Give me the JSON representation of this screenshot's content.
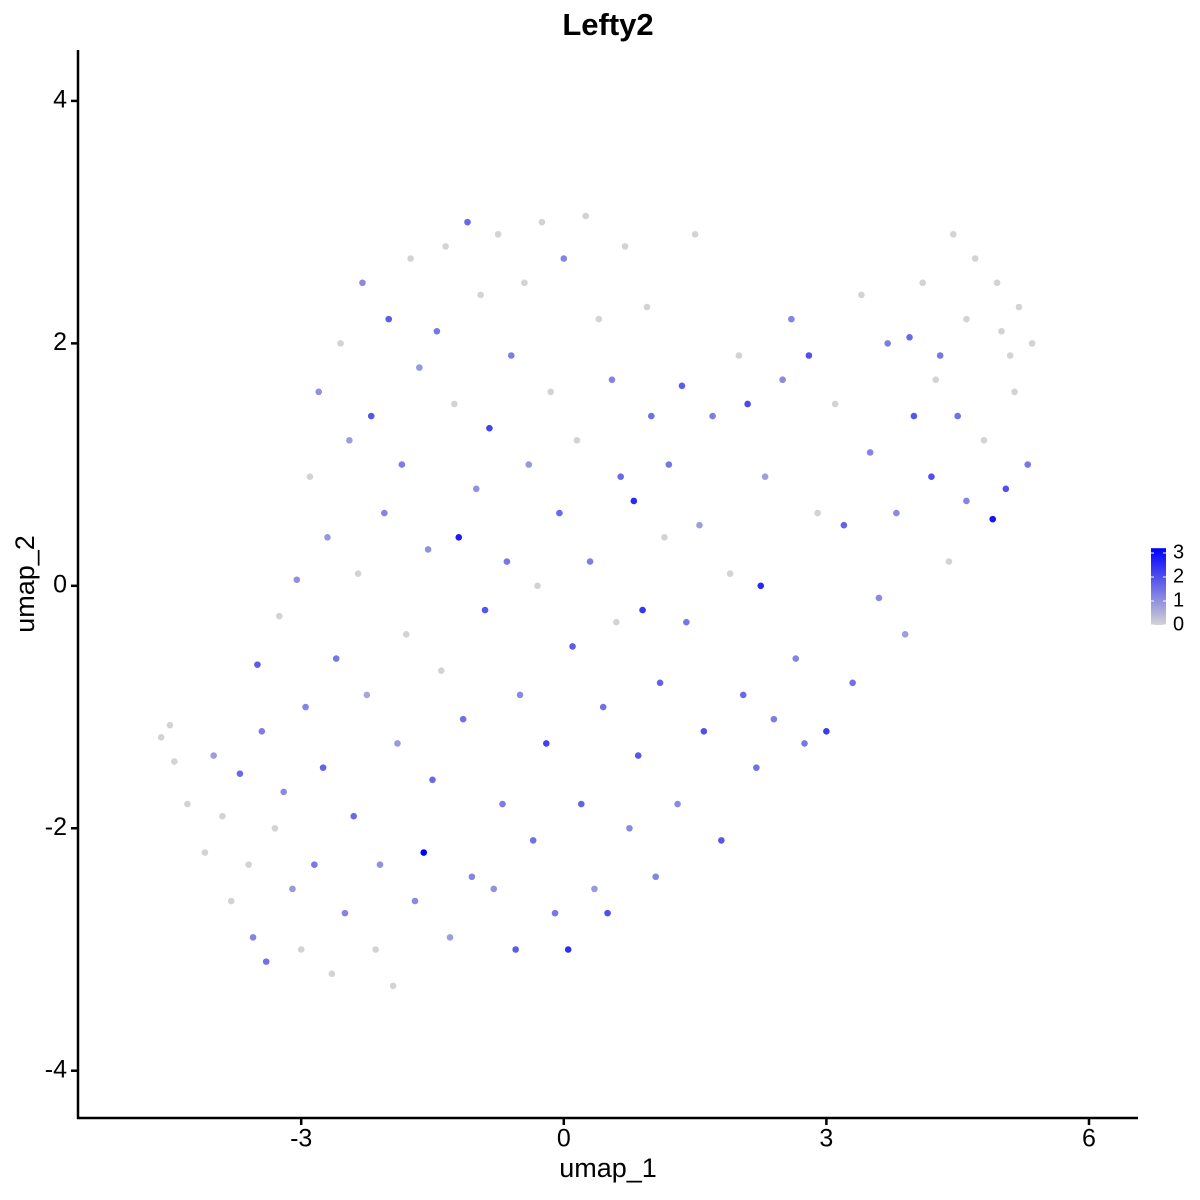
{
  "chart_data": {
    "type": "scatter",
    "title": "Lefty2",
    "x_label": "umap_1",
    "y_label": "umap_2",
    "xlim": [
      -5.55,
      6.56
    ],
    "ylim": [
      -4.39,
      4.42
    ],
    "xticks": [
      -3,
      0,
      3,
      6
    ],
    "yticks": [
      -4,
      -2,
      0,
      2,
      4
    ],
    "color_low": "#d3d3d3",
    "color_high": "#0000ff",
    "clim": [
      0,
      3.2
    ],
    "cticks": [
      0,
      1,
      2,
      3
    ],
    "x": [
      -4.6,
      -4.5,
      -4.45,
      -4.3,
      -4.1,
      -4.0,
      -3.9,
      -3.8,
      -3.7,
      -3.6,
      -3.55,
      -3.5,
      -3.45,
      -3.4,
      -3.3,
      -3.25,
      -3.2,
      -3.1,
      -3.05,
      -3.0,
      -2.95,
      -2.9,
      -2.85,
      -2.8,
      -2.75,
      -2.7,
      -2.65,
      -2.6,
      -2.55,
      -2.5,
      -2.45,
      -2.4,
      -2.35,
      -2.3,
      -2.25,
      -2.2,
      -2.15,
      -2.1,
      -2.05,
      -2.0,
      -1.95,
      -1.9,
      -1.85,
      -1.8,
      -1.75,
      -1.7,
      -1.65,
      -1.6,
      -1.55,
      -1.5,
      -1.45,
      -1.4,
      -1.35,
      -1.3,
      -1.25,
      -1.2,
      -1.15,
      -1.1,
      -1.05,
      -1.0,
      -0.95,
      -0.9,
      -0.85,
      -0.8,
      -0.75,
      -0.7,
      -0.65,
      -0.6,
      -0.55,
      -0.5,
      -0.45,
      -0.4,
      -0.35,
      -0.3,
      -0.25,
      -0.2,
      -0.15,
      -0.1,
      -0.05,
      0,
      0.05,
      0.1,
      0.15,
      0.2,
      0.25,
      0.3,
      0.35,
      0.4,
      0.45,
      0.5,
      0.55,
      0.6,
      0.65,
      0.7,
      0.75,
      0.8,
      0.85,
      0.9,
      0.95,
      1.0,
      1.05,
      1.1,
      1.15,
      1.2,
      1.3,
      1.35,
      1.4,
      1.5,
      1.55,
      1.6,
      1.7,
      1.8,
      1.9,
      2.0,
      2.05,
      2.1,
      2.2,
      2.25,
      2.3,
      2.4,
      2.5,
      2.6,
      2.65,
      2.75,
      2.8,
      2.9,
      3.0,
      3.1,
      3.2,
      3.3,
      3.4,
      3.5,
      3.6,
      3.7,
      3.8,
      3.9,
      4.0,
      4.1,
      4.2,
      4.3,
      4.4,
      4.45,
      4.5,
      4.6,
      4.7,
      4.8,
      4.9,
      5.0,
      5.05,
      5.1,
      5.2,
      5.3,
      5.35,
      4.6,
      4.95,
      3.95,
      4.25,
      5.15
    ],
    "y": [
      -1.25,
      -1.15,
      -1.45,
      -1.8,
      -2.2,
      -1.4,
      -1.9,
      -2.6,
      -1.55,
      -2.3,
      -2.9,
      -0.65,
      -1.2,
      -3.1,
      -2.0,
      -0.25,
      -1.7,
      -2.5,
      0.05,
      -3.0,
      -1.0,
      0.9,
      -2.3,
      1.6,
      -1.5,
      0.4,
      -3.2,
      -0.6,
      2.0,
      -2.7,
      1.2,
      -1.9,
      0.1,
      2.5,
      -0.9,
      1.4,
      -3.0,
      -2.3,
      0.6,
      2.2,
      -3.3,
      -1.3,
      1.0,
      -0.4,
      2.7,
      -2.6,
      1.8,
      -2.2,
      0.3,
      -1.6,
      2.1,
      -0.7,
      2.8,
      -2.9,
      1.5,
      0.4,
      -1.1,
      3.0,
      -2.4,
      0.8,
      2.4,
      -0.2,
      1.3,
      -2.5,
      2.9,
      -1.8,
      0.2,
      1.9,
      -3.0,
      -0.9,
      2.5,
      1.0,
      -2.1,
      0.0,
      3.0,
      -1.3,
      1.6,
      -2.7,
      0.6,
      2.7,
      -3.0,
      -0.5,
      1.2,
      -1.8,
      3.05,
      0.2,
      -2.5,
      2.2,
      -1.0,
      -2.7,
      1.7,
      -0.3,
      0.9,
      2.8,
      -2.0,
      0.7,
      -1.4,
      -0.2,
      2.3,
      1.4,
      -2.4,
      -0.8,
      0.4,
      1.0,
      -1.8,
      1.65,
      -0.3,
      2.9,
      0.5,
      -1.2,
      1.4,
      -2.1,
      0.1,
      1.9,
      -0.9,
      1.5,
      -1.5,
      0.0,
      0.9,
      -1.1,
      1.7,
      2.2,
      -0.6,
      -1.3,
      1.9,
      0.6,
      -1.2,
      1.5,
      0.5,
      -0.8,
      2.4,
      1.1,
      -0.1,
      2.0,
      0.6,
      -0.4,
      1.4,
      2.5,
      0.9,
      1.9,
      0.2,
      2.9,
      1.4,
      0.7,
      2.7,
      1.2,
      0.55,
      2.1,
      0.8,
      1.9,
      2.3,
      1.0,
      2.0,
      2.2,
      2.5,
      2.05,
      1.7,
      1.6
    ],
    "values": [
      0,
      0,
      0,
      0,
      0,
      0.8,
      0,
      0,
      1.6,
      0,
      1.2,
      1.8,
      1.3,
      1.5,
      0,
      0,
      1.1,
      0.9,
      1.0,
      0,
      1.2,
      0,
      1.4,
      1.0,
      1.7,
      0.9,
      0,
      1.4,
      0,
      1.2,
      0.8,
      1.6,
      0,
      1.1,
      0.7,
      1.9,
      0,
      1.0,
      1.2,
      1.8,
      0,
      0.9,
      1.3,
      0,
      0,
      1.1,
      0.9,
      3.2,
      1.0,
      1.6,
      1.4,
      0,
      0,
      0.8,
      0,
      2.8,
      1.5,
      1.6,
      1.2,
      1.0,
      0,
      1.9,
      2.2,
      1.0,
      0,
      1.3,
      1.4,
      1.3,
      1.8,
      1.1,
      0,
      0.9,
      1.5,
      0,
      0,
      2.2,
      0,
      1.4,
      1.6,
      1.2,
      2.5,
      1.8,
      0,
      1.7,
      0,
      1.3,
      0.9,
      0,
      1.5,
      2.0,
      1.2,
      0,
      1.6,
      0,
      1.1,
      2.6,
      1.9,
      2.4,
      0,
      1.5,
      1.2,
      1.7,
      0,
      1.4,
      1.1,
      1.8,
      1.4,
      0,
      0.8,
      2.0,
      1.3,
      1.9,
      0,
      0,
      1.6,
      2.1,
      1.5,
      2.6,
      0.8,
      1.3,
      1.1,
      1.2,
      1.2,
      1.4,
      2.0,
      0,
      2.3,
      0,
      1.7,
      1.5,
      0,
      1.2,
      1.1,
      1.3,
      1.1,
      0.8,
      1.9,
      0,
      2.0,
      1.4,
      0,
      0,
      1.5,
      1.2,
      0,
      0,
      2.9,
      0,
      2.0,
      0,
      0,
      1.4,
      0,
      0,
      0,
      1.6,
      0,
      0
    ]
  }
}
